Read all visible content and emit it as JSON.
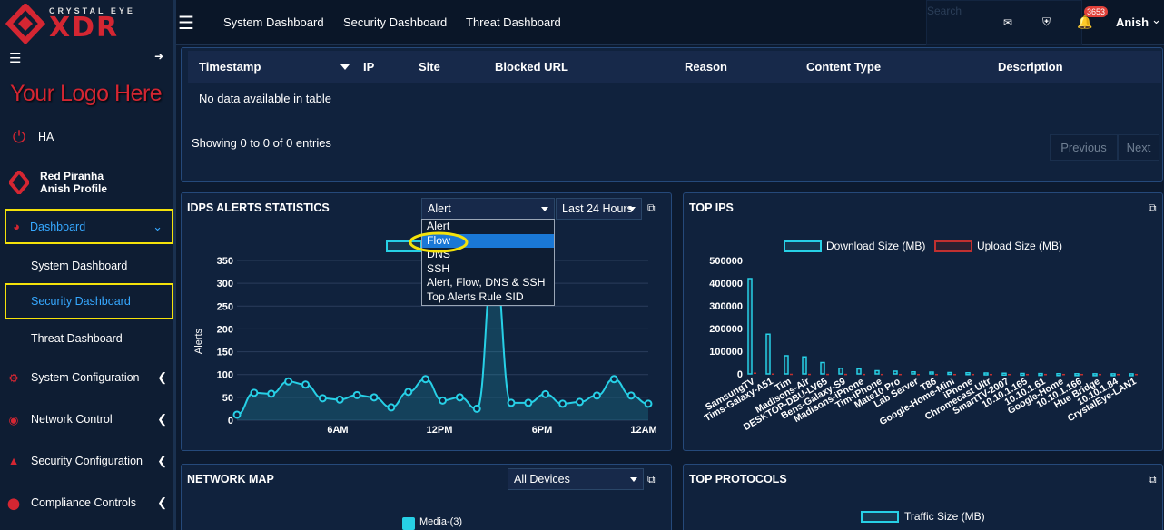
{
  "brand": {
    "top": "CRYSTAL EYE",
    "big": "XDR",
    "your_logo": "Your Logo Here"
  },
  "top_nav": {
    "items": [
      "System Dashboard",
      "Security Dashboard",
      "Threat Dashboard"
    ],
    "search_placeholder": "Search",
    "badge": "3653",
    "user": "Anish"
  },
  "sidebar": {
    "ha": "HA",
    "profile_name": "Red Piranha",
    "profile_sub": "Anish Profile",
    "dashboard": "Dashboard",
    "sub": [
      "System Dashboard",
      "Security Dashboard",
      "Threat Dashboard"
    ],
    "items": [
      "System Configuration",
      "Network Control",
      "Security Configuration",
      "Compliance Controls"
    ]
  },
  "table": {
    "headers": [
      "Timestamp",
      "IP",
      "Site",
      "Blocked URL",
      "Reason",
      "Content Type",
      "Description"
    ],
    "empty": "No data available in table",
    "info": "Showing 0 to 0 of 0 entries",
    "prev": "Previous",
    "next": "Next"
  },
  "idps": {
    "title": "IDPS ALERTS STATISTICS",
    "type_selected": "Alert",
    "range": "Last 24 Hours",
    "options": [
      "Alert",
      "Flow",
      "DNS",
      "SSH",
      "Alert, Flow, DNS & SSH",
      "Top Alerts Rule SID"
    ],
    "ylabel": "Alerts"
  },
  "top_ips": {
    "title": "TOP IPS",
    "legend_download": "Download Size (MB)",
    "legend_upload": "Upload Size (MB)"
  },
  "network_map": {
    "title": "NETWORK MAP",
    "filter": "All Devices",
    "node": "Media-(3)"
  },
  "top_protocols": {
    "title": "TOP PROTOCOLS",
    "legend": "Traffic Size (MB)"
  },
  "chart_data": [
    {
      "type": "area",
      "title": "IDPS ALERTS STATISTICS",
      "ylabel": "Alerts",
      "ylim": [
        0,
        350
      ],
      "yticks": [
        0,
        50,
        100,
        150,
        200,
        250,
        300,
        350
      ],
      "xticks": [
        "6AM",
        "12PM",
        "6PM",
        "12AM"
      ],
      "values": [
        12,
        60,
        58,
        85,
        78,
        48,
        45,
        55,
        50,
        28,
        62,
        90,
        43,
        50,
        25,
        350,
        38,
        38,
        57,
        36,
        40,
        54,
        90,
        54,
        36
      ],
      "color": "#27d0e6"
    },
    {
      "type": "bar",
      "title": "TOP IPS",
      "ylim": [
        0,
        500000
      ],
      "yticks": [
        0,
        100000,
        200000,
        300000,
        400000,
        500000
      ],
      "categories": [
        "SamsungTV",
        "Tims-Galaxy-A51",
        "Tim",
        "Madisons-Air",
        "DESKTOP-DBU-LV65",
        "Bens-Galaxy-S9",
        "Madisons-iPhone",
        "Tim-iPhone",
        "Mate10 Pro",
        "Lab Server",
        "T86",
        "Google-Home-Mini",
        "iPhone",
        "Chromecast Ultr",
        "SmartTV-2007",
        "10.10.1.165",
        "10.10.1.61",
        "Google-Home",
        "10.10.1.166",
        "Hue Bridge",
        "10.10.1.84",
        "CrystalEye-LAN1"
      ],
      "series": [
        {
          "name": "Download Size (MB)",
          "values": [
            420000,
            175000,
            80000,
            75000,
            50000,
            25000,
            22000,
            14000,
            12000,
            9000,
            8000,
            6000,
            5000,
            4000,
            3000,
            2000,
            1500,
            1000,
            800,
            600,
            500,
            400
          ]
        },
        {
          "name": "Upload Size (MB)",
          "values": [
            6000,
            2000,
            1000,
            800,
            600,
            500,
            400,
            300,
            200,
            100,
            100,
            100,
            100,
            100,
            100,
            100,
            100,
            100,
            100,
            100,
            100,
            100
          ]
        }
      ]
    }
  ]
}
